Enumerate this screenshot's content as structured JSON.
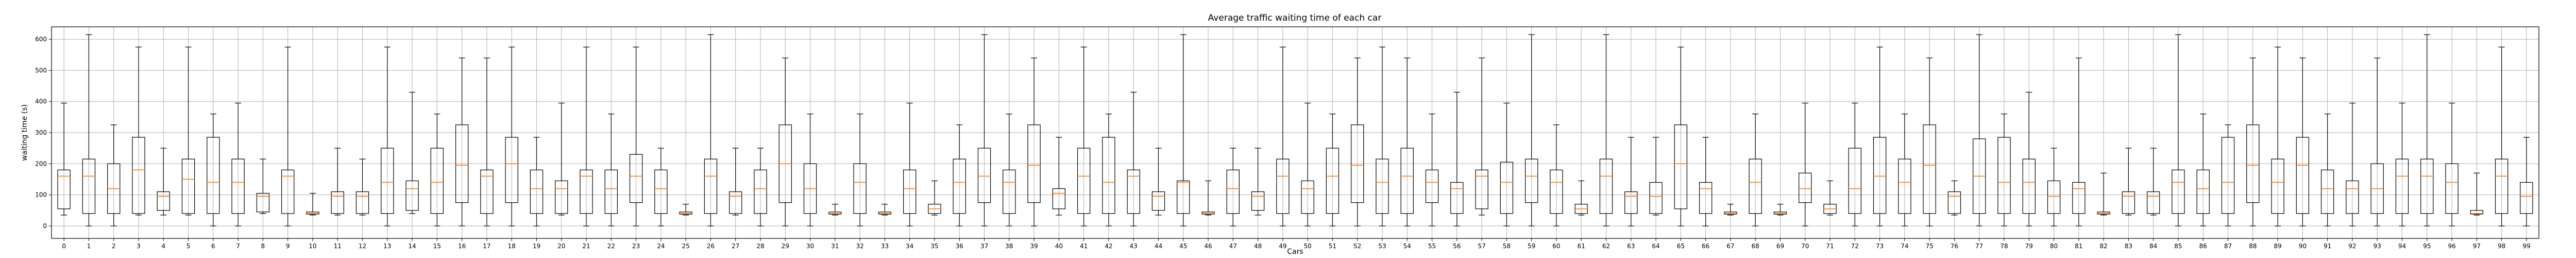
{
  "chart_data": {
    "type": "box",
    "title": "Average traffic waiting time of each car",
    "xlabel": "Cars",
    "ylabel": "waiting time (s)",
    "ylim": [
      -40,
      640
    ],
    "yticks": [
      0,
      100,
      200,
      300,
      400,
      500,
      600
    ],
    "grid": true,
    "categories": [
      "0",
      "1",
      "2",
      "3",
      "4",
      "5",
      "6",
      "7",
      "8",
      "9",
      "10",
      "11",
      "12",
      "13",
      "14",
      "15",
      "16",
      "17",
      "18",
      "19",
      "20",
      "21",
      "22",
      "23",
      "24",
      "25",
      "26",
      "27",
      "28",
      "29",
      "30",
      "31",
      "32",
      "33",
      "34",
      "35",
      "36",
      "37",
      "38",
      "39",
      "40",
      "41",
      "42",
      "43",
      "44",
      "45",
      "46",
      "47",
      "48",
      "49",
      "50",
      "51",
      "52",
      "53",
      "54",
      "55",
      "56",
      "57",
      "58",
      "59",
      "60",
      "61",
      "62",
      "63",
      "64",
      "65",
      "66",
      "67",
      "68",
      "69",
      "70",
      "71",
      "72",
      "73",
      "74",
      "75",
      "76",
      "77",
      "78",
      "79",
      "80",
      "81",
      "82",
      "83",
      "84",
      "85",
      "86",
      "87",
      "88",
      "89",
      "90",
      "91",
      "92",
      "93",
      "94",
      "95",
      "96",
      "97",
      "98",
      "99"
    ],
    "boxes": [
      {
        "min": 35,
        "q1": 55,
        "median": 160,
        "q3": 180,
        "max": 395
      },
      {
        "min": 0,
        "q1": 40,
        "median": 160,
        "q3": 215,
        "max": 615
      },
      {
        "min": 0,
        "q1": 40,
        "median": 120,
        "q3": 200,
        "max": 325
      },
      {
        "min": 35,
        "q1": 40,
        "median": 180,
        "q3": 285,
        "max": 575
      },
      {
        "min": 35,
        "q1": 50,
        "median": 95,
        "q3": 110,
        "max": 250
      },
      {
        "min": 35,
        "q1": 40,
        "median": 150,
        "q3": 215,
        "max": 575
      },
      {
        "min": 0,
        "q1": 40,
        "median": 140,
        "q3": 285,
        "max": 360
      },
      {
        "min": 0,
        "q1": 40,
        "median": 140,
        "q3": 215,
        "max": 395
      },
      {
        "min": 40,
        "q1": 45,
        "median": 95,
        "q3": 105,
        "max": 215
      },
      {
        "min": 0,
        "q1": 40,
        "median": 160,
        "q3": 180,
        "max": 575
      },
      {
        "min": 35,
        "q1": 38,
        "median": 40,
        "q3": 45,
        "max": 105
      },
      {
        "min": 35,
        "q1": 40,
        "median": 95,
        "q3": 110,
        "max": 250
      },
      {
        "min": 35,
        "q1": 40,
        "median": 95,
        "q3": 110,
        "max": 215
      },
      {
        "min": 0,
        "q1": 40,
        "median": 140,
        "q3": 250,
        "max": 575
      },
      {
        "min": 40,
        "q1": 50,
        "median": 120,
        "q3": 145,
        "max": 430
      },
      {
        "min": 0,
        "q1": 40,
        "median": 140,
        "q3": 250,
        "max": 360
      },
      {
        "min": 0,
        "q1": 75,
        "median": 195,
        "q3": 325,
        "max": 540
      },
      {
        "min": 0,
        "q1": 40,
        "median": 160,
        "q3": 180,
        "max": 540
      },
      {
        "min": 0,
        "q1": 75,
        "median": 200,
        "q3": 285,
        "max": 575
      },
      {
        "min": 0,
        "q1": 40,
        "median": 120,
        "q3": 180,
        "max": 285
      },
      {
        "min": 35,
        "q1": 40,
        "median": 120,
        "q3": 145,
        "max": 395
      },
      {
        "min": 0,
        "q1": 40,
        "median": 160,
        "q3": 180,
        "max": 575
      },
      {
        "min": 0,
        "q1": 40,
        "median": 120,
        "q3": 180,
        "max": 360
      },
      {
        "min": 0,
        "q1": 75,
        "median": 160,
        "q3": 230,
        "max": 575
      },
      {
        "min": 0,
        "q1": 40,
        "median": 120,
        "q3": 180,
        "max": 250
      },
      {
        "min": 35,
        "q1": 38,
        "median": 40,
        "q3": 45,
        "max": 70
      },
      {
        "min": 0,
        "q1": 40,
        "median": 160,
        "q3": 215,
        "max": 615
      },
      {
        "min": 35,
        "q1": 40,
        "median": 95,
        "q3": 110,
        "max": 250
      },
      {
        "min": 0,
        "q1": 40,
        "median": 120,
        "q3": 180,
        "max": 250
      },
      {
        "min": 0,
        "q1": 75,
        "median": 200,
        "q3": 325,
        "max": 540
      },
      {
        "min": 0,
        "q1": 40,
        "median": 120,
        "q3": 200,
        "max": 360
      },
      {
        "min": 35,
        "q1": 38,
        "median": 40,
        "q3": 45,
        "max": 70
      },
      {
        "min": 0,
        "q1": 40,
        "median": 140,
        "q3": 200,
        "max": 360
      },
      {
        "min": 35,
        "q1": 38,
        "median": 40,
        "q3": 45,
        "max": 70
      },
      {
        "min": 0,
        "q1": 40,
        "median": 120,
        "q3": 180,
        "max": 395
      },
      {
        "min": 35,
        "q1": 40,
        "median": 55,
        "q3": 70,
        "max": 145
      },
      {
        "min": 0,
        "q1": 40,
        "median": 140,
        "q3": 215,
        "max": 325
      },
      {
        "min": 0,
        "q1": 75,
        "median": 160,
        "q3": 250,
        "max": 615
      },
      {
        "min": 0,
        "q1": 40,
        "median": 140,
        "q3": 180,
        "max": 360
      },
      {
        "min": 0,
        "q1": 75,
        "median": 195,
        "q3": 325,
        "max": 540
      },
      {
        "min": 35,
        "q1": 55,
        "median": 105,
        "q3": 120,
        "max": 285
      },
      {
        "min": 0,
        "q1": 40,
        "median": 160,
        "q3": 250,
        "max": 575
      },
      {
        "min": 0,
        "q1": 40,
        "median": 140,
        "q3": 285,
        "max": 360
      },
      {
        "min": 0,
        "q1": 40,
        "median": 160,
        "q3": 180,
        "max": 430
      },
      {
        "min": 35,
        "q1": 50,
        "median": 95,
        "q3": 110,
        "max": 250
      },
      {
        "min": 0,
        "q1": 40,
        "median": 140,
        "q3": 145,
        "max": 615
      },
      {
        "min": 35,
        "q1": 38,
        "median": 40,
        "q3": 45,
        "max": 145
      },
      {
        "min": 0,
        "q1": 40,
        "median": 120,
        "q3": 180,
        "max": 250
      },
      {
        "min": 35,
        "q1": 50,
        "median": 95,
        "q3": 110,
        "max": 250
      },
      {
        "min": 0,
        "q1": 40,
        "median": 160,
        "q3": 215,
        "max": 575
      },
      {
        "min": 0,
        "q1": 40,
        "median": 120,
        "q3": 145,
        "max": 395
      },
      {
        "min": 0,
        "q1": 40,
        "median": 160,
        "q3": 250,
        "max": 360
      },
      {
        "min": 0,
        "q1": 75,
        "median": 195,
        "q3": 325,
        "max": 540
      },
      {
        "min": 0,
        "q1": 40,
        "median": 140,
        "q3": 215,
        "max": 575
      },
      {
        "min": 0,
        "q1": 40,
        "median": 160,
        "q3": 250,
        "max": 540
      },
      {
        "min": 0,
        "q1": 75,
        "median": 140,
        "q3": 180,
        "max": 360
      },
      {
        "min": 0,
        "q1": 40,
        "median": 120,
        "q3": 140,
        "max": 430
      },
      {
        "min": 35,
        "q1": 55,
        "median": 160,
        "q3": 180,
        "max": 540
      },
      {
        "min": 0,
        "q1": 40,
        "median": 140,
        "q3": 205,
        "max": 395
      },
      {
        "min": 0,
        "q1": 75,
        "median": 160,
        "q3": 215,
        "max": 615
      },
      {
        "min": 0,
        "q1": 40,
        "median": 140,
        "q3": 180,
        "max": 325
      },
      {
        "min": 35,
        "q1": 40,
        "median": 55,
        "q3": 70,
        "max": 145
      },
      {
        "min": 0,
        "q1": 40,
        "median": 160,
        "q3": 215,
        "max": 615
      },
      {
        "min": 0,
        "q1": 40,
        "median": 95,
        "q3": 110,
        "max": 285
      },
      {
        "min": 35,
        "q1": 40,
        "median": 95,
        "q3": 140,
        "max": 285
      },
      {
        "min": 0,
        "q1": 55,
        "median": 200,
        "q3": 325,
        "max": 575
      },
      {
        "min": 0,
        "q1": 40,
        "median": 120,
        "q3": 140,
        "max": 285
      },
      {
        "min": 35,
        "q1": 38,
        "median": 40,
        "q3": 45,
        "max": 70
      },
      {
        "min": 0,
        "q1": 40,
        "median": 140,
        "q3": 215,
        "max": 360
      },
      {
        "min": 35,
        "q1": 38,
        "median": 40,
        "q3": 45,
        "max": 70
      },
      {
        "min": 0,
        "q1": 75,
        "median": 120,
        "q3": 170,
        "max": 395
      },
      {
        "min": 35,
        "q1": 40,
        "median": 55,
        "q3": 70,
        "max": 145
      },
      {
        "min": 0,
        "q1": 40,
        "median": 120,
        "q3": 250,
        "max": 395
      },
      {
        "min": 0,
        "q1": 40,
        "median": 160,
        "q3": 285,
        "max": 575
      },
      {
        "min": 0,
        "q1": 40,
        "median": 140,
        "q3": 215,
        "max": 360
      },
      {
        "min": 0,
        "q1": 40,
        "median": 195,
        "q3": 325,
        "max": 540
      },
      {
        "min": 35,
        "q1": 40,
        "median": 95,
        "q3": 110,
        "max": 145
      },
      {
        "min": 0,
        "q1": 40,
        "median": 160,
        "q3": 280,
        "max": 615
      },
      {
        "min": 0,
        "q1": 40,
        "median": 140,
        "q3": 285,
        "max": 360
      },
      {
        "min": 0,
        "q1": 40,
        "median": 140,
        "q3": 215,
        "max": 430
      },
      {
        "min": 0,
        "q1": 40,
        "median": 95,
        "q3": 145,
        "max": 250
      },
      {
        "min": 0,
        "q1": 40,
        "median": 120,
        "q3": 140,
        "max": 540
      },
      {
        "min": 35,
        "q1": 38,
        "median": 40,
        "q3": 45,
        "max": 170
      },
      {
        "min": 35,
        "q1": 40,
        "median": 95,
        "q3": 110,
        "max": 250
      },
      {
        "min": 35,
        "q1": 40,
        "median": 95,
        "q3": 110,
        "max": 250
      },
      {
        "min": 0,
        "q1": 40,
        "median": 140,
        "q3": 180,
        "max": 615
      },
      {
        "min": 0,
        "q1": 40,
        "median": 120,
        "q3": 180,
        "max": 360
      },
      {
        "min": 0,
        "q1": 40,
        "median": 140,
        "q3": 285,
        "max": 325
      },
      {
        "min": 0,
        "q1": 75,
        "median": 195,
        "q3": 325,
        "max": 540
      },
      {
        "min": 0,
        "q1": 40,
        "median": 140,
        "q3": 215,
        "max": 575
      },
      {
        "min": 0,
        "q1": 40,
        "median": 195,
        "q3": 285,
        "max": 540
      },
      {
        "min": 0,
        "q1": 40,
        "median": 120,
        "q3": 180,
        "max": 360
      },
      {
        "min": 0,
        "q1": 40,
        "median": 120,
        "q3": 145,
        "max": 395
      },
      {
        "min": 0,
        "q1": 40,
        "median": 120,
        "q3": 200,
        "max": 540
      },
      {
        "min": 0,
        "q1": 40,
        "median": 160,
        "q3": 215,
        "max": 395
      },
      {
        "min": 0,
        "q1": 40,
        "median": 160,
        "q3": 215,
        "max": 615
      },
      {
        "min": 0,
        "q1": 40,
        "median": 140,
        "q3": 200,
        "max": 395
      },
      {
        "min": 35,
        "q1": 38,
        "median": 40,
        "q3": 50,
        "max": 170
      },
      {
        "min": 0,
        "q1": 40,
        "median": 160,
        "q3": 215,
        "max": 575
      },
      {
        "min": 0,
        "q1": 40,
        "median": 95,
        "q3": 140,
        "max": 285
      }
    ]
  }
}
